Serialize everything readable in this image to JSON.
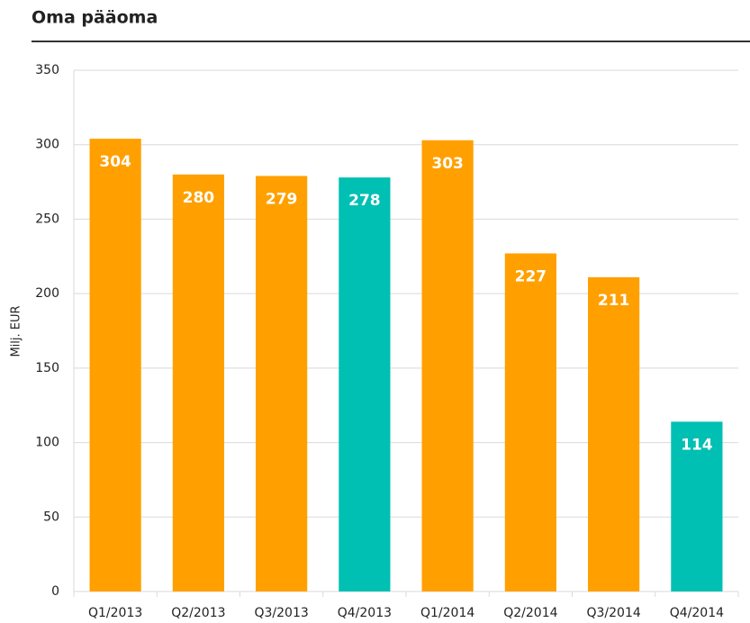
{
  "chart_data": {
    "type": "bar",
    "title": "Oma pääoma",
    "y_label": "Milj. EUR",
    "categories": [
      "Q1/2013",
      "Q2/2013",
      "Q3/2013",
      "Q4/2013",
      "Q1/2014",
      "Q2/2014",
      "Q3/2014",
      "Q4/2014"
    ],
    "values": [
      304,
      280,
      279,
      278,
      303,
      227,
      211,
      114
    ],
    "colors": [
      "#ffa000",
      "#ffa000",
      "#ffa000",
      "#00bfb3",
      "#ffa000",
      "#ffa000",
      "#ffa000",
      "#00bfb3"
    ],
    "ylim": [
      0,
      350
    ],
    "yticks": [
      0,
      50,
      100,
      150,
      200,
      250,
      300,
      350
    ],
    "grid": true
  }
}
